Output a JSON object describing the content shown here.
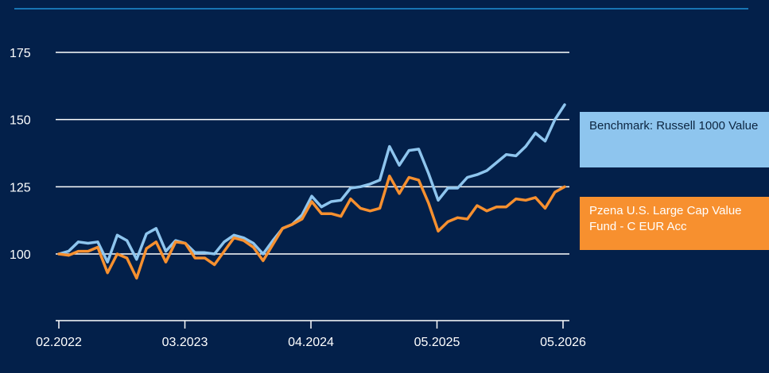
{
  "chart_data": {
    "type": "line",
    "x_ticks": [
      "02.2022",
      "03.2023",
      "04.2024",
      "05.2025",
      "05.2026"
    ],
    "y_ticks": [
      100,
      125,
      150,
      175
    ],
    "ylim": [
      75,
      183
    ],
    "grid": true,
    "legend_placement": "right",
    "colors": {
      "background": "#03204a",
      "rule": "#1f8fd6",
      "grid": "#ffffff",
      "benchmark": "#8ec5ee",
      "fund": "#f7902f"
    },
    "series": [
      {
        "name": "Benchmark: Russell 1000 Value",
        "color": "#8ec5ee",
        "values": [
          100,
          101,
          104.5,
          104,
          104.5,
          97,
          107,
          105,
          98,
          107.5,
          109.5,
          101,
          105,
          104,
          100.5,
          100.5,
          100,
          104.5,
          107,
          106,
          104,
          100,
          105,
          109.5,
          111,
          114.5,
          121.5,
          117.5,
          119.5,
          120,
          124.5,
          125,
          126,
          127.5,
          140,
          133,
          138.5,
          139,
          130,
          120,
          124.5,
          124.5,
          128.5,
          129.5,
          131,
          134,
          137,
          136.5,
          140,
          145,
          142,
          150,
          155.5
        ]
      },
      {
        "name": "Pzena U.S. Large Cap Value Fund - C EUR Acc",
        "color": "#f7902f",
        "values": [
          100,
          99.5,
          101,
          101,
          102.5,
          93,
          100,
          98.5,
          91,
          102,
          104.5,
          97,
          104.5,
          104,
          98.5,
          98.5,
          96,
          101,
          106,
          105,
          102.5,
          97.5,
          103.5,
          109.5,
          111,
          113,
          119.5,
          115,
          115,
          114,
          120.5,
          117,
          116,
          117,
          129,
          122.5,
          128.5,
          127.5,
          119,
          108.5,
          112,
          113.5,
          113,
          118,
          116,
          117.5,
          117.5,
          120.5,
          120,
          121,
          117,
          123,
          125
        ]
      }
    ]
  }
}
